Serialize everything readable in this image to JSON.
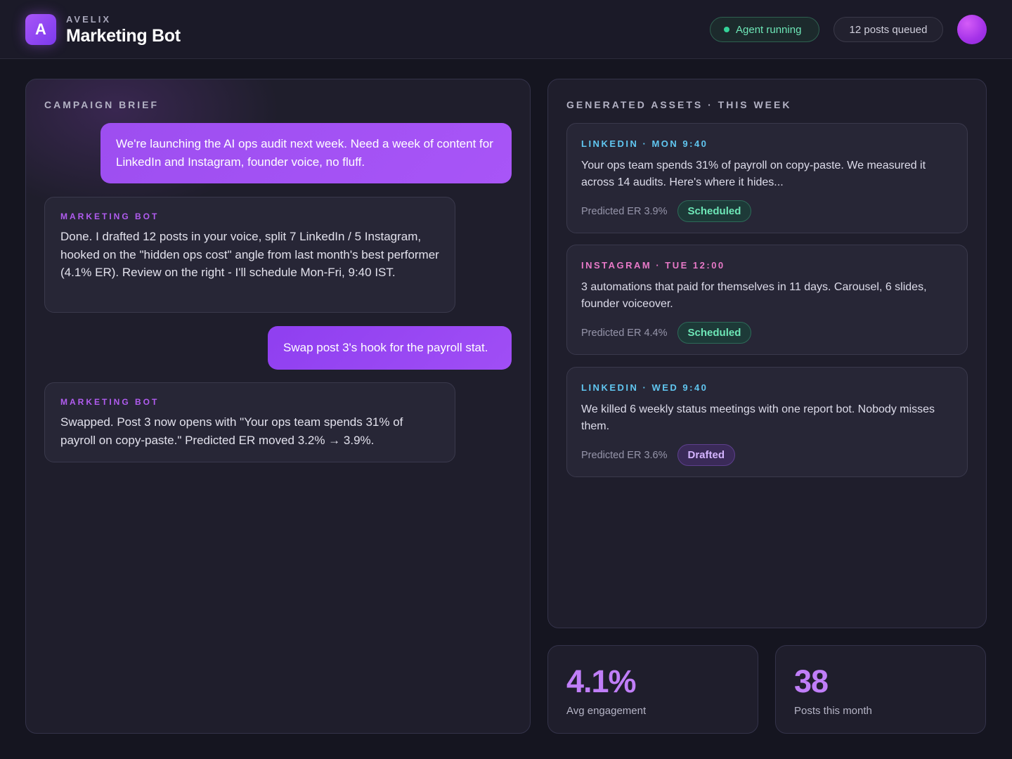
{
  "header": {
    "logo_letter": "A",
    "brand": "AVELIX",
    "title": "Marketing Bot",
    "status_label": "Agent running",
    "queue_label": "12 posts queued"
  },
  "brief": {
    "title": "CAMPAIGN BRIEF",
    "messages": [
      {
        "role": "user",
        "text": "We're launching the AI ops audit next week. Need a week of content for LinkedIn and Instagram, founder voice, no fluff."
      },
      {
        "role": "bot",
        "label": "MARKETING BOT",
        "text": "Done. I drafted 12 posts in your voice, split 7 LinkedIn / 5 Instagram, hooked on the \"hidden ops cost\" angle from last month's best performer (4.1% ER). Review on the right - I'll schedule Mon-Fri, 9:40 IST."
      },
      {
        "role": "user",
        "text": "Swap post 3's hook for the payroll stat."
      },
      {
        "role": "bot",
        "label": "MARKETING BOT",
        "text": "Swapped. Post 3 now opens with \"Your ops team spends 31% of payroll on copy-paste.\" Predicted ER moved 3.2% → 3.9%."
      }
    ]
  },
  "assets": {
    "title": "GENERATED ASSETS · THIS WEEK",
    "items": [
      {
        "tag": "LINKEDIN · MON 9:40",
        "text": "Your ops team spends 31% of payroll on copy-paste. We measured it across 14 audits. Here's where it hides...",
        "er": "Predicted ER 3.9%",
        "status": "Scheduled"
      },
      {
        "tag": "INSTAGRAM · TUE 12:00",
        "text": "3 automations that paid for themselves in 11 days. Carousel, 6 slides, founder voiceover.",
        "er": "Predicted ER 4.4%",
        "status": "Scheduled"
      },
      {
        "tag": "LINKEDIN · WED 9:40",
        "text": "We killed 6 weekly status meetings with one report bot. Nobody misses them.",
        "er": "Predicted ER 3.6%",
        "status": "Drafted"
      }
    ]
  },
  "stats": [
    {
      "value": "4.1%",
      "label": "Avg engagement"
    },
    {
      "value": "38",
      "label": "Posts this month"
    }
  ]
}
